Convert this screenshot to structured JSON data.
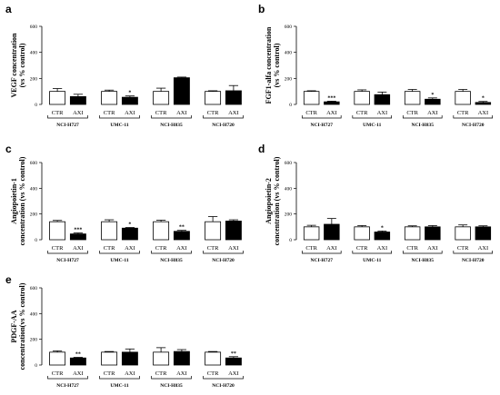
{
  "chart_data": [
    {
      "type": "bar",
      "panel_label": "a",
      "ylabel": [
        "VEGF concentration",
        "(vs % control)"
      ],
      "ylim": [
        0,
        600
      ],
      "yticks": [
        0,
        200,
        400,
        600
      ],
      "groups": [
        "NCI-H727",
        "UMC-11",
        "NCI-H835",
        "NCI-H720"
      ],
      "categories": [
        "CTR",
        "AXI"
      ],
      "bars": [
        {
          "group": "NCI-H727",
          "category": "CTR",
          "value": 100,
          "error": 22,
          "sig": ""
        },
        {
          "group": "NCI-H727",
          "category": "AXI",
          "value": 60,
          "error": 18,
          "sig": ""
        },
        {
          "group": "UMC-11",
          "category": "CTR",
          "value": 100,
          "error": 10,
          "sig": ""
        },
        {
          "group": "UMC-11",
          "category": "AXI",
          "value": 55,
          "error": 10,
          "sig": "*"
        },
        {
          "group": "NCI-H835",
          "category": "CTR",
          "value": 100,
          "error": 25,
          "sig": ""
        },
        {
          "group": "NCI-H835",
          "category": "AXI",
          "value": 205,
          "error": 5,
          "sig": ""
        },
        {
          "group": "NCI-H720",
          "category": "CTR",
          "value": 100,
          "error": 5,
          "sig": ""
        },
        {
          "group": "NCI-H720",
          "category": "AXI",
          "value": 105,
          "error": 40,
          "sig": ""
        }
      ]
    },
    {
      "type": "bar",
      "panel_label": "b",
      "ylabel": [
        "FGF1-alfa concentration",
        "(vs % control)"
      ],
      "ylim": [
        0,
        600
      ],
      "yticks": [
        0,
        200,
        400,
        600
      ],
      "groups": [
        "NCI-H727",
        "UMC-11",
        "NCI-H835",
        "NCI-H720"
      ],
      "categories": [
        "CTR",
        "AXI"
      ],
      "bars": [
        {
          "group": "NCI-H727",
          "category": "CTR",
          "value": 100,
          "error": 5,
          "sig": ""
        },
        {
          "group": "NCI-H727",
          "category": "AXI",
          "value": 20,
          "error": 5,
          "sig": "***"
        },
        {
          "group": "UMC-11",
          "category": "CTR",
          "value": 100,
          "error": 12,
          "sig": ""
        },
        {
          "group": "UMC-11",
          "category": "AXI",
          "value": 75,
          "error": 20,
          "sig": ""
        },
        {
          "group": "NCI-H835",
          "category": "CTR",
          "value": 100,
          "error": 15,
          "sig": ""
        },
        {
          "group": "NCI-H835",
          "category": "AXI",
          "value": 40,
          "error": 10,
          "sig": "*"
        },
        {
          "group": "NCI-H720",
          "category": "CTR",
          "value": 100,
          "error": 15,
          "sig": ""
        },
        {
          "group": "NCI-H720",
          "category": "AXI",
          "value": 15,
          "error": 8,
          "sig": "*"
        }
      ]
    },
    {
      "type": "bar",
      "panel_label": "c",
      "ylabel": [
        "Angiopoietin-1",
        "concentration (vs % control)"
      ],
      "ylim": [
        0,
        600
      ],
      "yticks": [
        0,
        200,
        400,
        600
      ],
      "groups": [
        "NCI-H727",
        "UMC-11",
        "NCI-H835",
        "NCI-H720"
      ],
      "categories": [
        "CTR",
        "AXI"
      ],
      "bars": [
        {
          "group": "NCI-H727",
          "category": "CTR",
          "value": 140,
          "error": 10,
          "sig": ""
        },
        {
          "group": "NCI-H727",
          "category": "AXI",
          "value": 45,
          "error": 8,
          "sig": "***"
        },
        {
          "group": "UMC-11",
          "category": "CTR",
          "value": 140,
          "error": 15,
          "sig": ""
        },
        {
          "group": "UMC-11",
          "category": "AXI",
          "value": 90,
          "error": 5,
          "sig": "*"
        },
        {
          "group": "NCI-H835",
          "category": "CTR",
          "value": 140,
          "error": 12,
          "sig": ""
        },
        {
          "group": "NCI-H835",
          "category": "AXI",
          "value": 65,
          "error": 8,
          "sig": "**"
        },
        {
          "group": "NCI-H720",
          "category": "CTR",
          "value": 140,
          "error": 40,
          "sig": ""
        },
        {
          "group": "NCI-H720",
          "category": "AXI",
          "value": 145,
          "error": 10,
          "sig": ""
        }
      ]
    },
    {
      "type": "bar",
      "panel_label": "d",
      "ylabel": [
        "Angiopoietin-2",
        "concentration (vs % control)"
      ],
      "ylim": [
        0,
        600
      ],
      "yticks": [
        0,
        200,
        400,
        600
      ],
      "groups": [
        "NCI-H727",
        "UMC-11",
        "NCI-H835",
        "NCI-H720"
      ],
      "categories": [
        "CTR",
        "AXI"
      ],
      "bars": [
        {
          "group": "NCI-H727",
          "category": "CTR",
          "value": 100,
          "error": 12,
          "sig": ""
        },
        {
          "group": "NCI-H727",
          "category": "AXI",
          "value": 120,
          "error": 45,
          "sig": ""
        },
        {
          "group": "UMC-11",
          "category": "CTR",
          "value": 100,
          "error": 10,
          "sig": ""
        },
        {
          "group": "UMC-11",
          "category": "AXI",
          "value": 60,
          "error": 8,
          "sig": "*"
        },
        {
          "group": "NCI-H835",
          "category": "CTR",
          "value": 100,
          "error": 8,
          "sig": ""
        },
        {
          "group": "NCI-H835",
          "category": "AXI",
          "value": 100,
          "error": 10,
          "sig": ""
        },
        {
          "group": "NCI-H720",
          "category": "CTR",
          "value": 100,
          "error": 15,
          "sig": ""
        },
        {
          "group": "NCI-H720",
          "category": "AXI",
          "value": 100,
          "error": 8,
          "sig": ""
        }
      ]
    },
    {
      "type": "bar",
      "panel_label": "e",
      "ylabel": [
        "PDGF-AA",
        "concentration(vs % control)"
      ],
      "ylim": [
        0,
        600
      ],
      "yticks": [
        0,
        200,
        400,
        600
      ],
      "groups": [
        "NCI-H727",
        "UMC-11",
        "NCI-H835",
        "NCI-H720"
      ],
      "categories": [
        "CTR",
        "AXI"
      ],
      "bars": [
        {
          "group": "NCI-H727",
          "category": "CTR",
          "value": 100,
          "error": 10,
          "sig": ""
        },
        {
          "group": "NCI-H727",
          "category": "AXI",
          "value": 55,
          "error": 5,
          "sig": "**"
        },
        {
          "group": "UMC-11",
          "category": "CTR",
          "value": 100,
          "error": 5,
          "sig": ""
        },
        {
          "group": "UMC-11",
          "category": "AXI",
          "value": 100,
          "error": 25,
          "sig": ""
        },
        {
          "group": "NCI-H835",
          "category": "CTR",
          "value": 100,
          "error": 35,
          "sig": ""
        },
        {
          "group": "NCI-H835",
          "category": "AXI",
          "value": 105,
          "error": 15,
          "sig": ""
        },
        {
          "group": "NCI-H720",
          "category": "CTR",
          "value": 100,
          "error": 5,
          "sig": ""
        },
        {
          "group": "NCI-H720",
          "category": "AXI",
          "value": 55,
          "error": 10,
          "sig": "**"
        }
      ]
    }
  ]
}
